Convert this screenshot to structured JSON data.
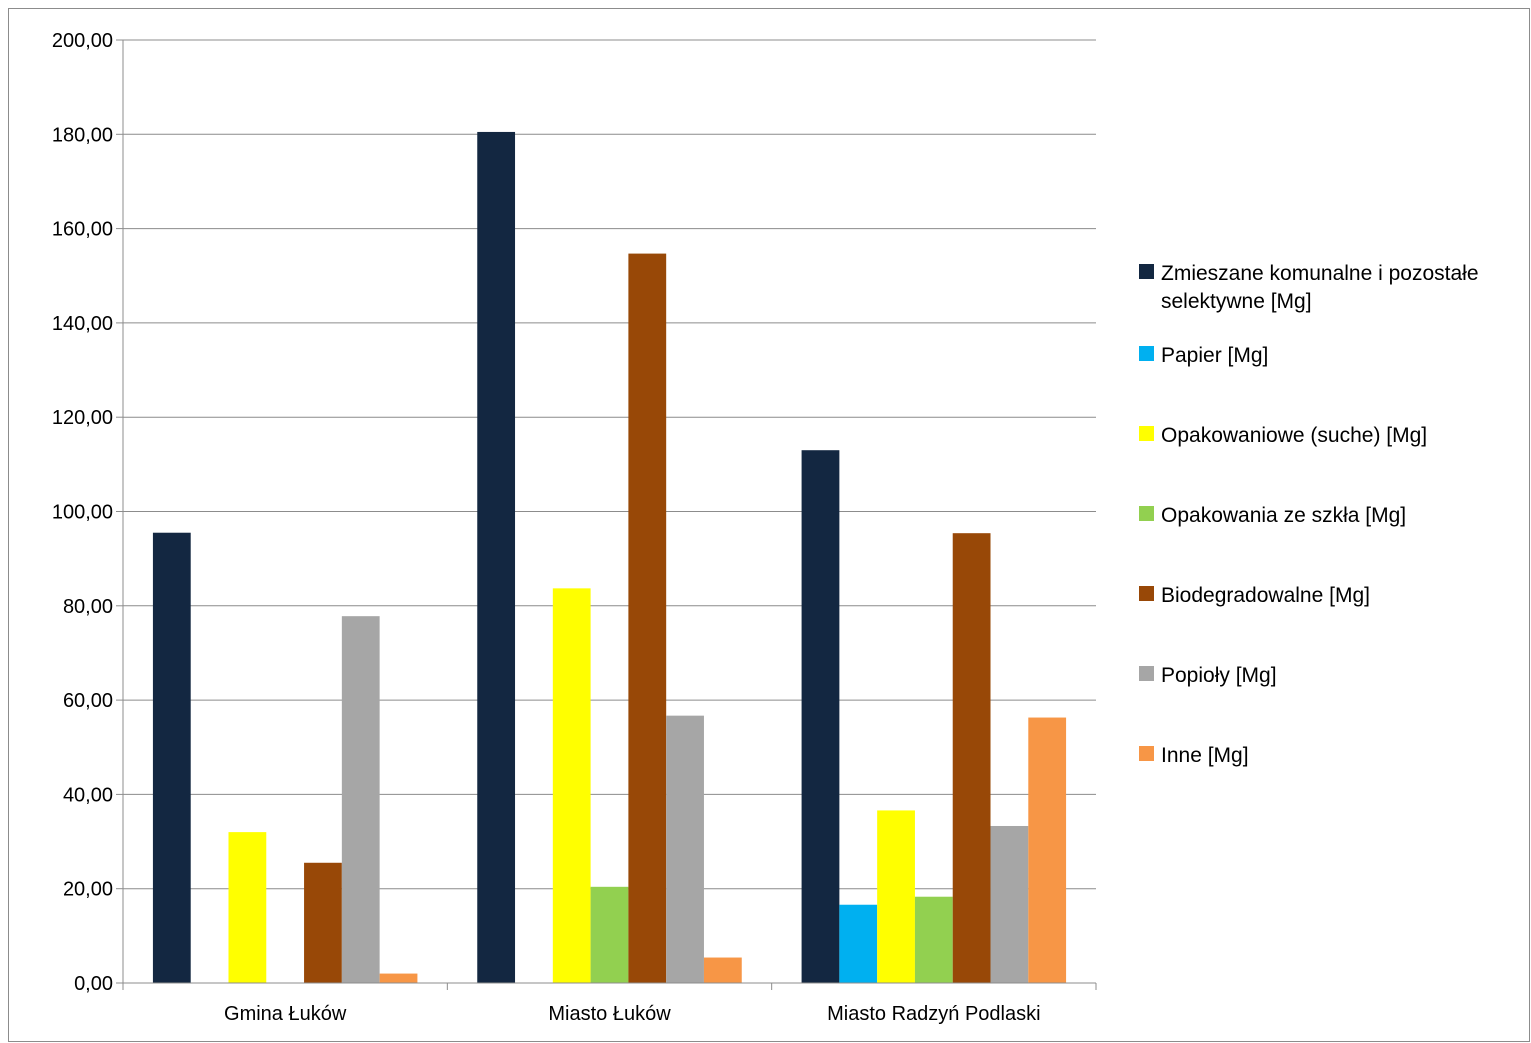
{
  "chart_data": {
    "type": "bar",
    "title": "",
    "xlabel": "",
    "ylabel": "",
    "ylim": [
      0,
      200
    ],
    "y_ticks": [
      "0,00",
      "20,00",
      "40,00",
      "60,00",
      "80,00",
      "100,00",
      "120,00",
      "140,00",
      "160,00",
      "180,00",
      "200,00"
    ],
    "y_tick_values": [
      0,
      20,
      40,
      60,
      80,
      100,
      120,
      140,
      160,
      180,
      200
    ],
    "grid": true,
    "legend_position": "right",
    "categories": [
      "Gmina Łuków",
      "Miasto Łuków",
      "Miasto Radzyń Podlaski"
    ],
    "series": [
      {
        "name": "Zmieszane komunalne i pozostałe selektywne [Mg]",
        "legend_lines": [
          "Zmieszane komunalne i pozostałe",
          "selektywne [Mg]"
        ],
        "color": "#132741",
        "values": [
          95.5,
          180.5,
          113.0
        ]
      },
      {
        "name": "Papier [Mg]",
        "legend_lines": [
          "Papier [Mg]"
        ],
        "color": "#00b0f0",
        "values": [
          0,
          0,
          16.6
        ]
      },
      {
        "name": "Opakowaniowe (suche) [Mg]",
        "legend_lines": [
          "Opakowaniowe (suche) [Mg]"
        ],
        "color": "#ffff00",
        "values": [
          32.0,
          83.7,
          36.6
        ]
      },
      {
        "name": "Opakowania ze szkła [Mg]",
        "legend_lines": [
          "Opakowania ze szkła [Mg]"
        ],
        "color": "#92d050",
        "values": [
          0,
          20.4,
          18.3
        ]
      },
      {
        "name": "Biodegradowalne [Mg]",
        "legend_lines": [
          "Biodegradowalne [Mg]"
        ],
        "color": "#984807",
        "values": [
          25.5,
          154.7,
          95.4
        ]
      },
      {
        "name": "Popioły [Mg]",
        "legend_lines": [
          "Popioły [Mg]"
        ],
        "color": "#a6a6a6",
        "values": [
          77.8,
          56.7,
          33.3
        ]
      },
      {
        "name": "Inne [Mg]",
        "legend_lines": [
          "Inne [Mg]"
        ],
        "color": "#f79646",
        "values": [
          2.0,
          5.4,
          56.3
        ]
      }
    ]
  }
}
